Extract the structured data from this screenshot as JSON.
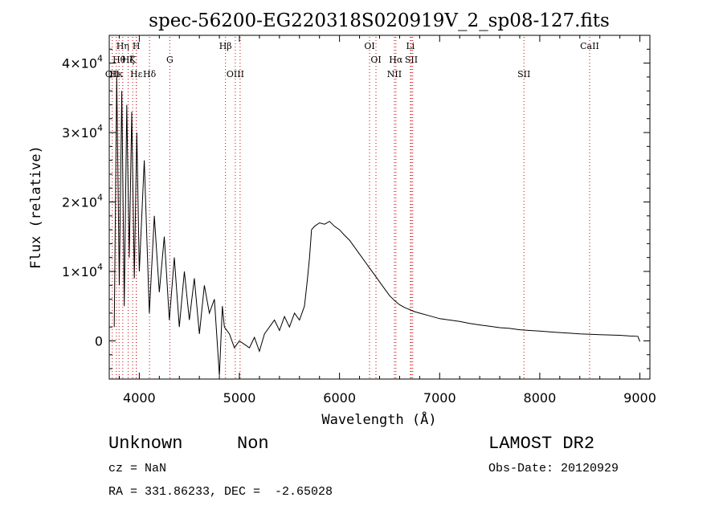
{
  "chart_data": {
    "type": "line",
    "title": "spec-56200-EG220318S020919V_2_sp08-127.fits",
    "xlabel": "Wavelength (Å)",
    "ylabel": "Flux (relative)",
    "xlim": [
      3700,
      9100
    ],
    "ylim": [
      -5500,
      44000
    ],
    "x_ticks": [
      4000,
      5000,
      6000,
      7000,
      8000,
      9000
    ],
    "x_tick_labels": [
      "4000",
      "5000",
      "6000",
      "7000",
      "8000",
      "9000"
    ],
    "y_ticks": [
      0,
      10000,
      20000,
      30000,
      40000
    ],
    "y_tick_labels": [
      {
        "mant": "0",
        "exp": ""
      },
      {
        "mant": "1×10",
        "exp": "4"
      },
      {
        "mant": "2×10",
        "exp": "4"
      },
      {
        "mant": "3×10",
        "exp": "4"
      },
      {
        "mant": "4×10",
        "exp": "4"
      }
    ],
    "grid": false,
    "line_color": "#000000",
    "marker_color": "#cc0000",
    "series": [
      {
        "x": [
          3750,
          3775,
          3800,
          3825,
          3850,
          3875,
          3900,
          3925,
          3950,
          3975,
          4000,
          4050,
          4100,
          4150,
          4200,
          4250,
          4300,
          4350,
          4400,
          4450,
          4500,
          4550,
          4600,
          4650,
          4700,
          4750,
          4800,
          4830,
          4850,
          4900,
          4950,
          5000,
          5050,
          5100,
          5150,
          5200,
          5250,
          5300,
          5350,
          5400,
          5450,
          5500,
          5550,
          5600,
          5650,
          5680,
          5700,
          5720,
          5750,
          5800,
          5850,
          5900,
          5950,
          6000,
          6050,
          6100,
          6150,
          6200,
          6250,
          6300,
          6350,
          6400,
          6450,
          6500,
          6550,
          6600,
          6650,
          6700,
          6750,
          6800,
          6900,
          7000,
          7100,
          7200,
          7300,
          7400,
          7500,
          7600,
          7700,
          7800,
          7900,
          8000,
          8100,
          8200,
          8300,
          8400,
          8500,
          8600,
          8700,
          8800,
          8900,
          8980,
          9000
        ],
        "y": [
          2000,
          38000,
          8000,
          36000,
          5000,
          34000,
          12000,
          33000,
          9000,
          30000,
          10000,
          26000,
          4000,
          18000,
          7000,
          15000,
          3000,
          12000,
          2000,
          10000,
          3000,
          9000,
          1000,
          8000,
          4000,
          6000,
          -5000,
          5000,
          2000,
          1000,
          -1000,
          0,
          -500,
          -1000,
          500,
          -1500,
          1000,
          2000,
          3000,
          1500,
          3500,
          2000,
          4000,
          3000,
          5000,
          9000,
          12000,
          16000,
          16500,
          17000,
          16800,
          17200,
          16500,
          16000,
          15200,
          14500,
          13500,
          12500,
          11500,
          10500,
          9500,
          8500,
          7500,
          6500,
          5800,
          5200,
          4800,
          4500,
          4200,
          4000,
          3600,
          3200,
          3000,
          2800,
          2500,
          2300,
          2100,
          1900,
          1800,
          1600,
          1500,
          1400,
          1300,
          1200,
          1100,
          1000,
          950,
          900,
          850,
          800,
          700,
          650,
          -100
        ]
      }
    ],
    "lines": [
      {
        "wave": 3730,
        "label": "OII",
        "row": 2
      },
      {
        "wave": 3771,
        "label": "Hκ",
        "row": 2
      },
      {
        "wave": 3798,
        "label": "Hθ",
        "row": 1
      },
      {
        "wave": 3835,
        "label": "Hη",
        "row": 0
      },
      {
        "wave": 3889,
        "label": "Hζ",
        "row": 1
      },
      {
        "wave": 3934,
        "label": "K",
        "row": 1
      },
      {
        "wave": 3970,
        "label": "H",
        "row": 0
      },
      {
        "wave": 3970,
        "label": "Hε",
        "row": 2
      },
      {
        "wave": 4102,
        "label": "Hδ",
        "row": 2
      },
      {
        "wave": 4305,
        "label": "G",
        "row": 1
      },
      {
        "wave": 4861,
        "label": "Hβ",
        "row": 0
      },
      {
        "wave": 4959,
        "label": "OIII",
        "row": 2
      },
      {
        "wave": 5007,
        "label": "",
        "row": 2
      },
      {
        "wave": 6300,
        "label": "OI",
        "row": 0
      },
      {
        "wave": 6364,
        "label": "OI",
        "row": 1
      },
      {
        "wave": 6548,
        "label": "NII",
        "row": 2
      },
      {
        "wave": 6563,
        "label": "Hα",
        "row": 1
      },
      {
        "wave": 6708,
        "label": "Li",
        "row": 0
      },
      {
        "wave": 6717,
        "label": "SII",
        "row": 1
      },
      {
        "wave": 6731,
        "label": "",
        "row": 1
      },
      {
        "wave": 7842,
        "label": "SII",
        "row": 2
      },
      {
        "wave": 8498,
        "label": "CaII",
        "row": 0
      }
    ]
  },
  "info": {
    "class_label": "Unknown",
    "subclass_label": "Non",
    "survey": "LAMOST DR2",
    "cz": "cz = NaN",
    "obs_date": "Obs-Date: 20120929",
    "coords": "RA = 331.86233, DEC =  -2.65028"
  }
}
